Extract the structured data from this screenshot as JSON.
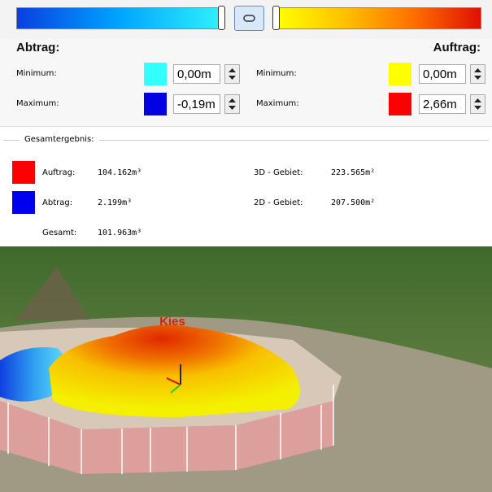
{
  "cut": {
    "title": "Abtrag:",
    "minimum_label": "Minimum:",
    "minimum": "0,00m",
    "maximum_label": "Maximum:",
    "maximum": "-0,19m"
  },
  "fill": {
    "title": "Auftrag:",
    "minimum_label": "Minimum:",
    "minimum": "0,00m",
    "maximum_label": "Maximum:",
    "maximum": "2,66m"
  },
  "results": {
    "title": "Gesamtergebnis:",
    "rows": [
      {
        "label": "Auftrag:",
        "value": "104.162m³",
        "area_label": "3D - Gebiet:",
        "area_value": "223.565m²"
      },
      {
        "label": "Abtrag:",
        "value": "2.199m³",
        "area_label": "2D - Gebiet:",
        "area_value": "207.500m²"
      },
      {
        "label": "Gesamt:",
        "value": "101.963m³"
      }
    ]
  },
  "scene": {
    "label": "Kies"
  }
}
